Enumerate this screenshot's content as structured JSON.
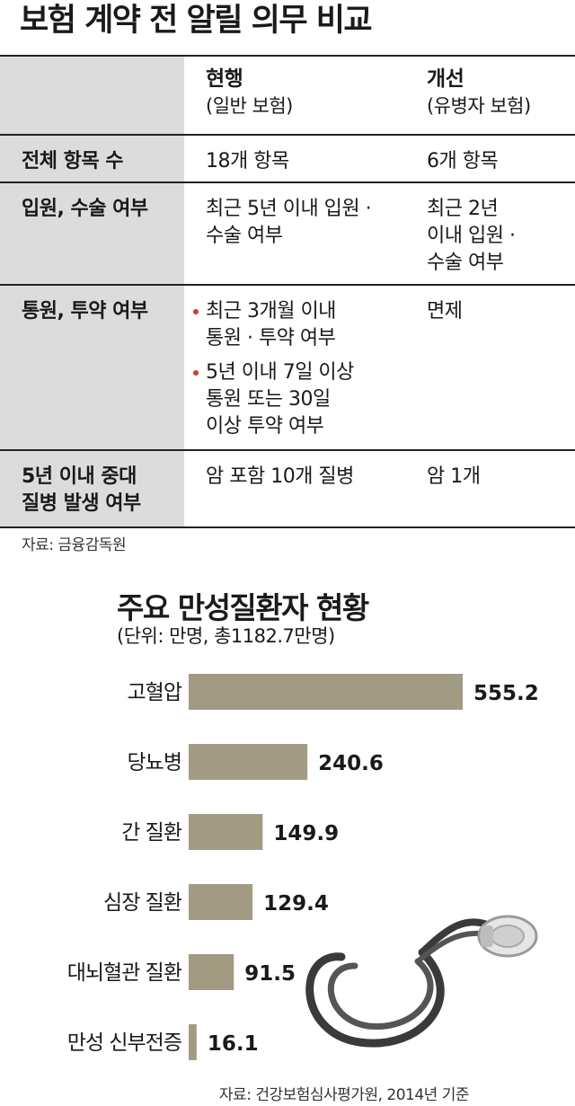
{
  "page": {
    "title": "보험 계약 전 알릴 의무 비교",
    "source_top": "자료: 금융감독원"
  },
  "table": {
    "headers": [
      {
        "label": "현행",
        "sub": "(일반 보험)"
      },
      {
        "label": "개선",
        "sub": "(유병자 보험)"
      }
    ],
    "rows": [
      {
        "head": [
          "전체 항목 수"
        ],
        "current": [
          "18개 항목"
        ],
        "improved": [
          "6개 항목"
        ]
      },
      {
        "head": [
          "입원, 수술 여부"
        ],
        "current": [
          "최근 5년 이내 입원 ·",
          "수술 여부"
        ],
        "improved": [
          "최근 2년",
          "이내 입원 ·",
          "수술 여부"
        ]
      },
      {
        "head": [
          "통원, 투약 여부"
        ],
        "current_bullets": [
          [
            "최근 3개월 이내",
            "통원 · 투약 여부"
          ],
          [
            "5년 이내 7일 이상",
            "통원 또는 30일",
            "이상 투약 여부"
          ]
        ],
        "improved": [
          "면제"
        ]
      },
      {
        "head": [
          "5년 이내 중대",
          "질병 발생 여부"
        ],
        "current": [
          "암 포함 10개 질병"
        ],
        "improved": [
          "암 1개"
        ]
      }
    ],
    "colors": {
      "header_bg": "#dcdcdc",
      "bullet": "#d23a2a"
    }
  },
  "chart_data": {
    "type": "bar",
    "orientation": "horizontal",
    "title": "주요 만성질환자 현황",
    "subtitle": "(단위: 만명, 총1182.7만명)",
    "categories": [
      "고혈압",
      "당뇨병",
      "간 질환",
      "심장 질환",
      "대뇌혈관 질환",
      "만성 신부전증"
    ],
    "values": [
      555.2,
      240.6,
      149.9,
      129.4,
      91.5,
      16.1
    ],
    "value_labels": [
      "555.2",
      "240.6",
      "149.9",
      "129.4",
      "91.5",
      "16.1"
    ],
    "bar_color": "#a39a84",
    "xlim": [
      0,
      600
    ],
    "grid": false,
    "source": "자료: 건강보험심사평가원, 2014년 기준"
  }
}
